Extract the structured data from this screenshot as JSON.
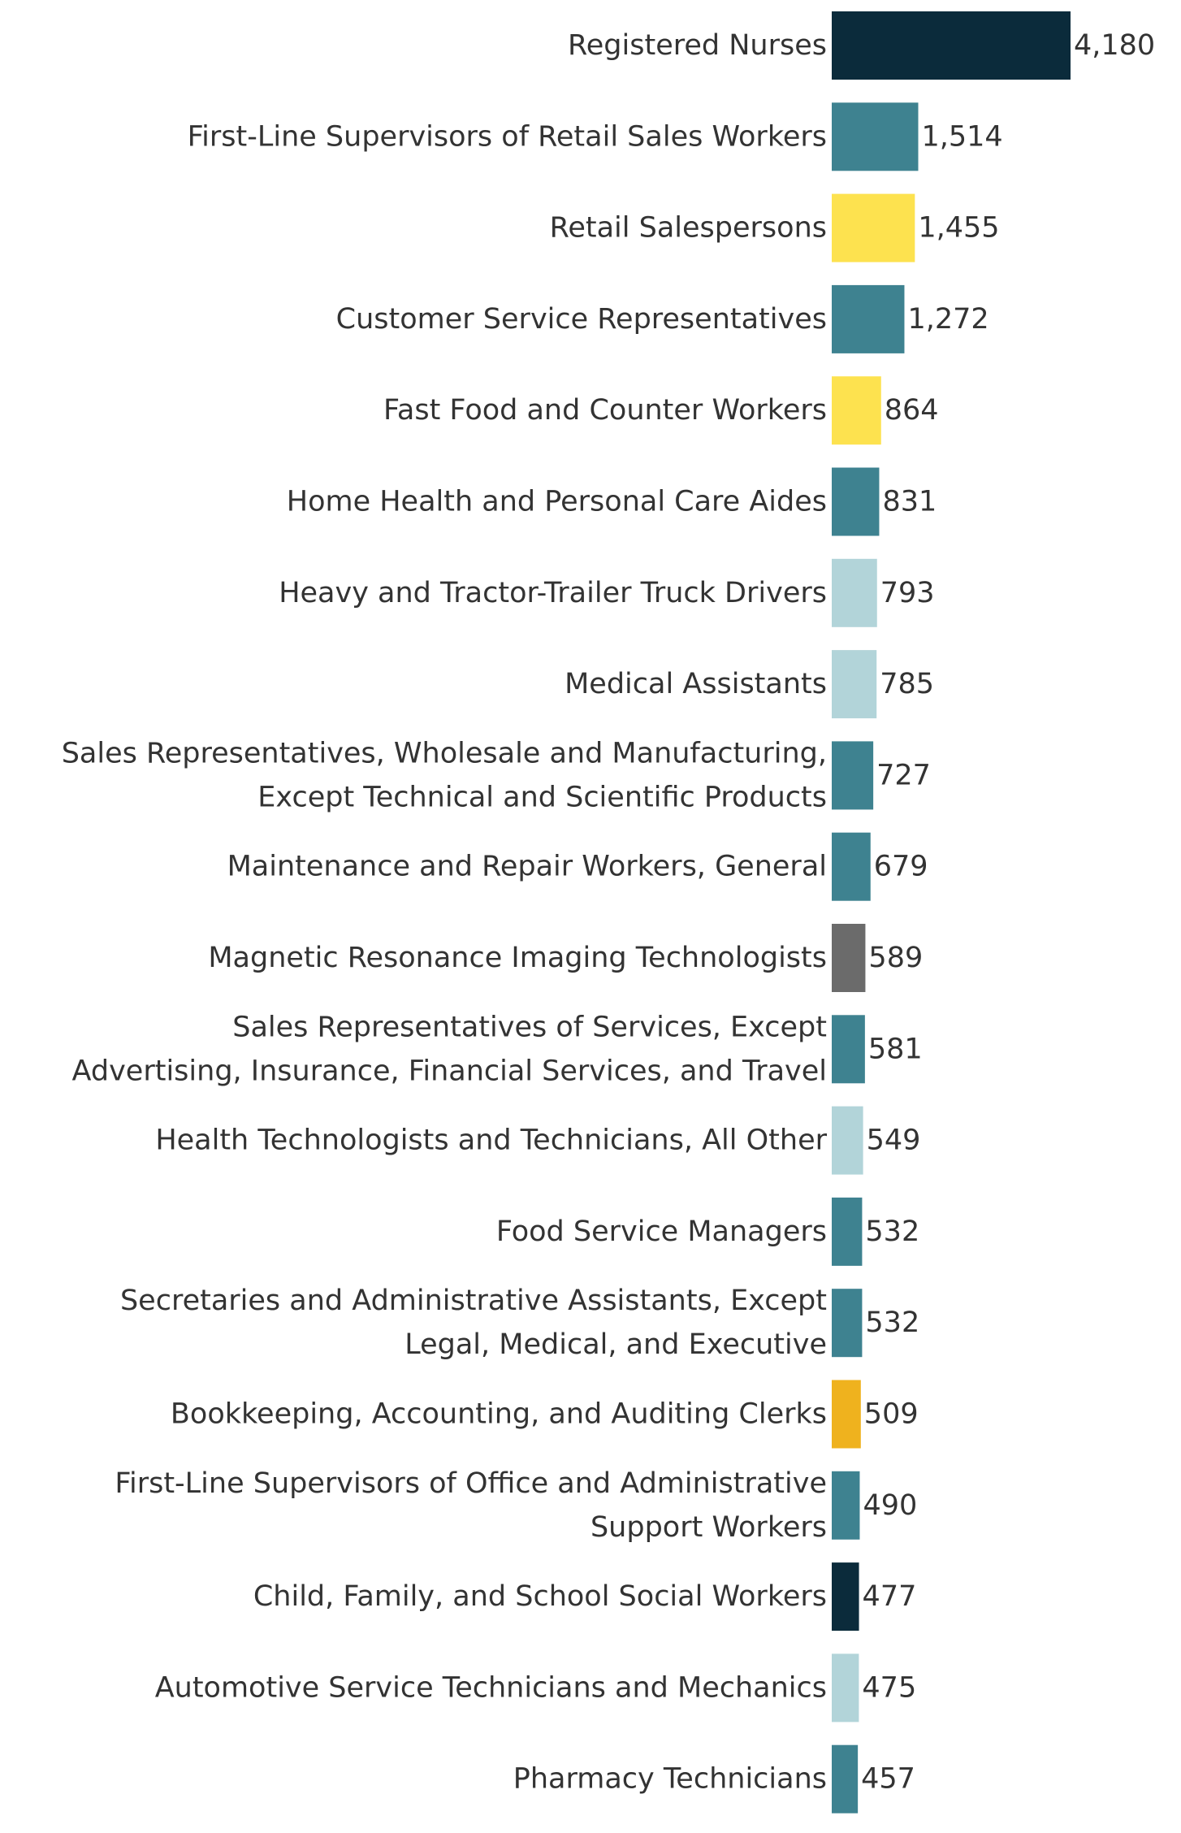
{
  "chart_data": {
    "type": "bar",
    "orientation": "horizontal",
    "title": "",
    "xlabel": "",
    "ylabel": "",
    "grid": false,
    "categories": [
      [
        "Registered Nurses"
      ],
      [
        "First-Line Supervisors of Retail Sales Workers"
      ],
      [
        "Retail Salespersons"
      ],
      [
        "Customer Service Representatives"
      ],
      [
        "Fast Food and Counter Workers"
      ],
      [
        "Home Health and Personal Care Aides"
      ],
      [
        "Heavy and Tractor-Trailer Truck Drivers"
      ],
      [
        "Medical Assistants"
      ],
      [
        "Sales Representatives, Wholesale and Manufacturing,",
        "Except Technical and Scientific Products"
      ],
      [
        "Maintenance and Repair Workers, General"
      ],
      [
        "Magnetic Resonance Imaging Technologists"
      ],
      [
        "Sales Representatives of Services, Except",
        "Advertising, Insurance, Financial Services, and Travel"
      ],
      [
        "Health Technologists and Technicians, All Other"
      ],
      [
        "Food Service Managers"
      ],
      [
        "Secretaries and Administrative Assistants, Except",
        "Legal, Medical, and Executive"
      ],
      [
        "Bookkeeping, Accounting, and Auditing Clerks"
      ],
      [
        "First-Line Supervisors of Office and Administrative",
        "Support Workers"
      ],
      [
        "Child, Family, and School Social Workers"
      ],
      [
        "Automotive Service Technicians and Mechanics"
      ],
      [
        "Pharmacy Technicians"
      ]
    ],
    "values": [
      4180,
      1514,
      1455,
      1272,
      864,
      831,
      793,
      785,
      727,
      679,
      589,
      581,
      549,
      532,
      532,
      509,
      490,
      477,
      475,
      457
    ],
    "value_labels": [
      "4,180",
      "1,514",
      "1,455",
      "1,272",
      "864",
      "831",
      "793",
      "785",
      "727",
      "679",
      "589",
      "581",
      "549",
      "532",
      "532",
      "509",
      "490",
      "477",
      "475",
      "457"
    ],
    "colors": [
      "#0b2b3b",
      "#3e8290",
      "#fde24f",
      "#3e8290",
      "#fde24f",
      "#3e8290",
      "#b2d4d9",
      "#b2d4d9",
      "#3e8290",
      "#3e8290",
      "#6b6b6b",
      "#3e8290",
      "#b2d4d9",
      "#3e8290",
      "#3e8290",
      "#efb21e",
      "#3e8290",
      "#0b2b3b",
      "#b2d4d9",
      "#3e8290"
    ],
    "xlim": [
      0,
      4180
    ]
  }
}
